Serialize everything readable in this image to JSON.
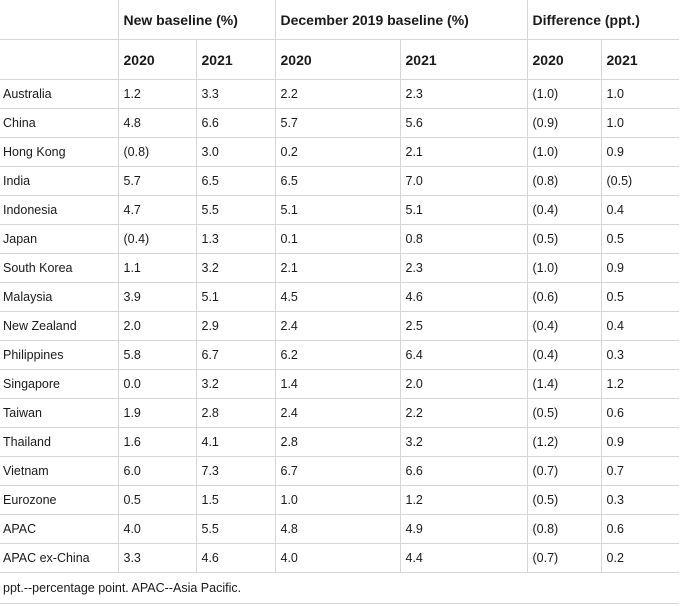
{
  "headers": {
    "group_new": "New baseline (%)",
    "group_dec": "December 2019 baseline (%)",
    "group_diff": "Difference (ppt.)",
    "years": [
      "2020",
      "2021",
      "2020",
      "2021",
      "2020",
      "2021"
    ]
  },
  "rows": [
    {
      "country": "Australia",
      "new_2020": "1.2",
      "new_2021": "3.3",
      "dec_2020": "2.2",
      "dec_2021": "2.3",
      "diff_2020": "(1.0)",
      "diff_2021": "1.0"
    },
    {
      "country": "China",
      "new_2020": "4.8",
      "new_2021": "6.6",
      "dec_2020": "5.7",
      "dec_2021": "5.6",
      "diff_2020": "(0.9)",
      "diff_2021": "1.0"
    },
    {
      "country": "Hong Kong",
      "new_2020": "(0.8)",
      "new_2021": "3.0",
      "dec_2020": "0.2",
      "dec_2021": "2.1",
      "diff_2020": "(1.0)",
      "diff_2021": "0.9"
    },
    {
      "country": "India",
      "new_2020": "5.7",
      "new_2021": "6.5",
      "dec_2020": "6.5",
      "dec_2021": "7.0",
      "diff_2020": "(0.8)",
      "diff_2021": "(0.5)"
    },
    {
      "country": "Indonesia",
      "new_2020": "4.7",
      "new_2021": "5.5",
      "dec_2020": "5.1",
      "dec_2021": "5.1",
      "diff_2020": "(0.4)",
      "diff_2021": "0.4"
    },
    {
      "country": "Japan",
      "new_2020": "(0.4)",
      "new_2021": "1.3",
      "dec_2020": "0.1",
      "dec_2021": "0.8",
      "diff_2020": "(0.5)",
      "diff_2021": "0.5"
    },
    {
      "country": "South Korea",
      "new_2020": "1.1",
      "new_2021": "3.2",
      "dec_2020": "2.1",
      "dec_2021": "2.3",
      "diff_2020": "(1.0)",
      "diff_2021": "0.9"
    },
    {
      "country": "Malaysia",
      "new_2020": "3.9",
      "new_2021": "5.1",
      "dec_2020": "4.5",
      "dec_2021": "4.6",
      "diff_2020": "(0.6)",
      "diff_2021": "0.5"
    },
    {
      "country": "New Zealand",
      "new_2020": "2.0",
      "new_2021": "2.9",
      "dec_2020": "2.4",
      "dec_2021": "2.5",
      "diff_2020": "(0.4)",
      "diff_2021": "0.4"
    },
    {
      "country": "Philippines",
      "new_2020": "5.8",
      "new_2021": "6.7",
      "dec_2020": "6.2",
      "dec_2021": "6.4",
      "diff_2020": "(0.4)",
      "diff_2021": "0.3"
    },
    {
      "country": "Singapore",
      "new_2020": "0.0",
      "new_2021": "3.2",
      "dec_2020": "1.4",
      "dec_2021": "2.0",
      "diff_2020": "(1.4)",
      "diff_2021": "1.2"
    },
    {
      "country": "Taiwan",
      "new_2020": "1.9",
      "new_2021": "2.8",
      "dec_2020": "2.4",
      "dec_2021": "2.2",
      "diff_2020": "(0.5)",
      "diff_2021": "0.6"
    },
    {
      "country": "Thailand",
      "new_2020": "1.6",
      "new_2021": "4.1",
      "dec_2020": "2.8",
      "dec_2021": "3.2",
      "diff_2020": "(1.2)",
      "diff_2021": "0.9"
    },
    {
      "country": "Vietnam",
      "new_2020": "6.0",
      "new_2021": "7.3",
      "dec_2020": "6.7",
      "dec_2021": "6.6",
      "diff_2020": "(0.7)",
      "diff_2021": "0.7"
    },
    {
      "country": "Eurozone",
      "new_2020": "0.5",
      "new_2021": "1.5",
      "dec_2020": "1.0",
      "dec_2021": "1.2",
      "diff_2020": "(0.5)",
      "diff_2021": "0.3"
    },
    {
      "country": "APAC",
      "new_2020": "4.0",
      "new_2021": "5.5",
      "dec_2020": "4.8",
      "dec_2021": "4.9",
      "diff_2020": "(0.8)",
      "diff_2021": "0.6"
    },
    {
      "country": "APAC ex-China",
      "new_2020": "3.3",
      "new_2021": "4.6",
      "dec_2020": "4.0",
      "dec_2021": "4.4",
      "diff_2020": "(0.7)",
      "diff_2021": "0.2"
    }
  ],
  "footnote": "ppt.--percentage point. APAC--Asia Pacific."
}
